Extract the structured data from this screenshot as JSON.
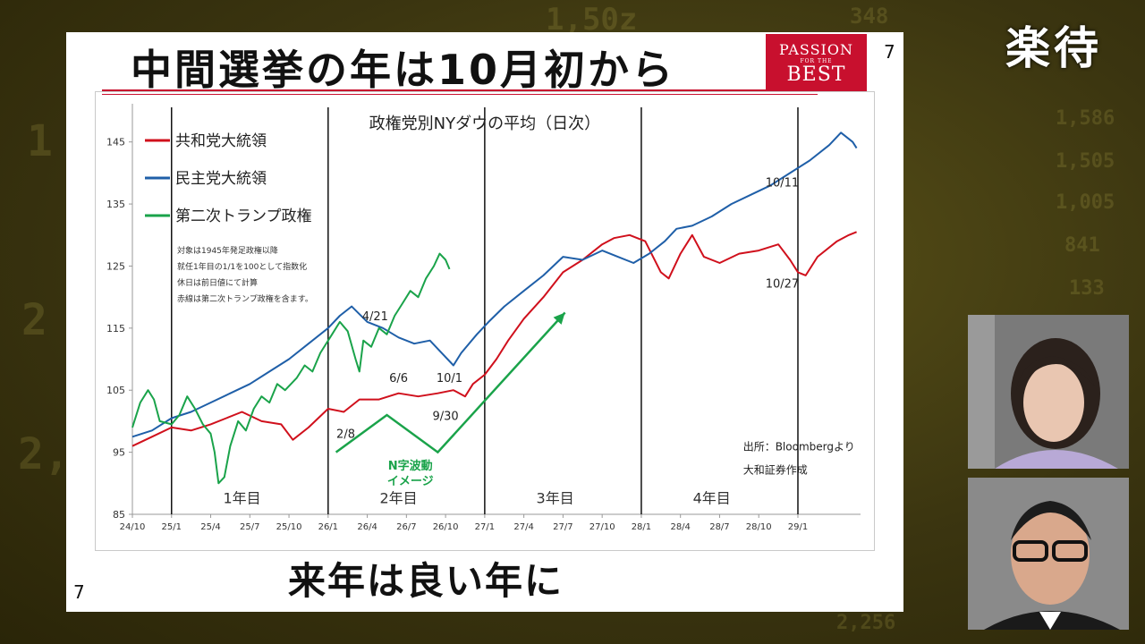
{
  "slide": {
    "title": "中間選挙の年は10月初から",
    "page_number": "7",
    "page_number_bottom": "7",
    "caption": "来年は良い年に",
    "logo": {
      "line1": "PASSION",
      "line2": "FOR THE",
      "line3": "BEST"
    }
  },
  "tag": "楽待",
  "background_digits": [
    "1,50z",
    "348",
    "1,586",
    "1,505",
    "1,005",
    "1",
    "2",
    "2,",
    "841",
    "133",
    "2,256"
  ],
  "notes": [
    "対象は1945年発足政権以降",
    "就任1年目の1/1を100として指数化",
    "休日は前日値にて計算",
    "赤線は第二次トランプ政権を含ます。"
  ],
  "source": [
    "出所：Bloombergより",
    "大和証券作成"
  ],
  "colors": {
    "republican": "#d0101c",
    "democrat": "#1f5fa8",
    "trump2": "#1aa34a",
    "logo": "#c8102e"
  },
  "chart_data": {
    "type": "line",
    "title": "政権党別NYダウの平均（日次）",
    "ylim": [
      85,
      150
    ],
    "yticks": [
      85,
      95,
      105,
      115,
      125,
      135,
      145
    ],
    "xticks": [
      "24/10",
      "25/1",
      "25/4",
      "25/7",
      "25/10",
      "26/1",
      "26/4",
      "26/7",
      "26/10",
      "27/1",
      "27/4",
      "27/7",
      "27/10",
      "28/1",
      "28/4",
      "28/7",
      "28/10",
      "29/1"
    ],
    "x_range": [
      0,
      18.6
    ],
    "term_boundaries": [
      1,
      5,
      9,
      13,
      17
    ],
    "term_labels": [
      {
        "label": "1年目",
        "x": 2.8
      },
      {
        "label": "2年目",
        "x": 6.8
      },
      {
        "label": "3年目",
        "x": 10.8
      },
      {
        "label": "4年目",
        "x": 14.8
      }
    ],
    "series": [
      {
        "name": "共和党大統領",
        "color": "#d0101c",
        "points": [
          [
            0,
            96
          ],
          [
            0.5,
            97.5
          ],
          [
            1,
            99
          ],
          [
            1.5,
            98.5
          ],
          [
            2,
            99.5
          ],
          [
            2.4,
            100.5
          ],
          [
            2.8,
            101.5
          ],
          [
            3.3,
            100
          ],
          [
            3.8,
            99.5
          ],
          [
            4.1,
            97
          ],
          [
            4.5,
            99
          ],
          [
            5,
            102
          ],
          [
            5.4,
            101.5
          ],
          [
            5.8,
            103.5
          ],
          [
            6.3,
            103.5
          ],
          [
            6.8,
            104.5
          ],
          [
            7.3,
            104
          ],
          [
            7.8,
            104.5
          ],
          [
            8.2,
            105
          ],
          [
            8.5,
            104
          ],
          [
            8.7,
            106
          ],
          [
            9,
            107.5
          ],
          [
            9.3,
            110
          ],
          [
            9.6,
            113
          ],
          [
            10,
            116.5
          ],
          [
            10.5,
            120
          ],
          [
            11,
            124
          ],
          [
            11.5,
            126
          ],
          [
            12,
            128.5
          ],
          [
            12.3,
            129.5
          ],
          [
            12.7,
            130
          ],
          [
            13.1,
            129
          ],
          [
            13.5,
            124
          ],
          [
            13.7,
            123
          ],
          [
            14,
            127
          ],
          [
            14.3,
            130
          ],
          [
            14.6,
            126.5
          ],
          [
            15,
            125.5
          ],
          [
            15.5,
            127
          ],
          [
            16,
            127.5
          ],
          [
            16.5,
            128.5
          ],
          [
            16.8,
            126
          ],
          [
            17,
            124
          ],
          [
            17.2,
            123.5
          ],
          [
            17.5,
            126.5
          ],
          [
            18,
            129
          ],
          [
            18.3,
            130
          ],
          [
            18.5,
            130.5
          ]
        ]
      },
      {
        "name": "民主党大統領",
        "color": "#1f5fa8",
        "points": [
          [
            0,
            97.5
          ],
          [
            0.5,
            98.5
          ],
          [
            1,
            100.5
          ],
          [
            1.5,
            101.5
          ],
          [
            2,
            103
          ],
          [
            2.5,
            104.5
          ],
          [
            3,
            106
          ],
          [
            3.5,
            108
          ],
          [
            4,
            110
          ],
          [
            4.5,
            112.5
          ],
          [
            5,
            115
          ],
          [
            5.3,
            117
          ],
          [
            5.6,
            118.5
          ],
          [
            6,
            116
          ],
          [
            6.4,
            115
          ],
          [
            6.8,
            113.5
          ],
          [
            7.2,
            112.5
          ],
          [
            7.6,
            113
          ],
          [
            7.9,
            111
          ],
          [
            8.2,
            109
          ],
          [
            8.4,
            111
          ],
          [
            8.8,
            114
          ],
          [
            9.1,
            116
          ],
          [
            9.5,
            118.5
          ],
          [
            10,
            121
          ],
          [
            10.5,
            123.5
          ],
          [
            11,
            126.5
          ],
          [
            11.5,
            126
          ],
          [
            12,
            127.5
          ],
          [
            12.4,
            126.5
          ],
          [
            12.8,
            125.5
          ],
          [
            13.2,
            127
          ],
          [
            13.6,
            129
          ],
          [
            13.9,
            131
          ],
          [
            14.3,
            131.5
          ],
          [
            14.8,
            133
          ],
          [
            15.3,
            135
          ],
          [
            15.8,
            136.5
          ],
          [
            16.3,
            138
          ],
          [
            16.8,
            140
          ],
          [
            17.3,
            142
          ],
          [
            17.8,
            144.5
          ],
          [
            18.1,
            146.5
          ],
          [
            18.4,
            145
          ],
          [
            18.5,
            144
          ]
        ]
      },
      {
        "name": "第二次トランプ政権",
        "color": "#1aa34a",
        "points": [
          [
            0,
            99
          ],
          [
            0.2,
            103
          ],
          [
            0.4,
            105
          ],
          [
            0.55,
            103.5
          ],
          [
            0.7,
            100
          ],
          [
            1,
            99.5
          ],
          [
            1.2,
            101
          ],
          [
            1.4,
            104
          ],
          [
            1.6,
            102
          ],
          [
            1.8,
            99.5
          ],
          [
            2,
            98
          ],
          [
            2.1,
            95
          ],
          [
            2.2,
            90
          ],
          [
            2.35,
            91
          ],
          [
            2.5,
            96
          ],
          [
            2.7,
            100
          ],
          [
            2.9,
            98.5
          ],
          [
            3.1,
            102
          ],
          [
            3.3,
            104
          ],
          [
            3.5,
            103
          ],
          [
            3.7,
            106
          ],
          [
            3.9,
            105
          ],
          [
            4.2,
            107
          ],
          [
            4.4,
            109
          ],
          [
            4.6,
            108
          ],
          [
            4.8,
            111
          ],
          [
            5.1,
            114
          ],
          [
            5.3,
            116
          ],
          [
            5.5,
            114.5
          ],
          [
            5.7,
            110
          ],
          [
            5.8,
            108
          ],
          [
            5.9,
            113
          ],
          [
            6.1,
            112
          ],
          [
            6.3,
            115
          ],
          [
            6.5,
            114
          ],
          [
            6.7,
            117
          ],
          [
            6.9,
            119
          ],
          [
            7.1,
            121
          ],
          [
            7.3,
            120
          ],
          [
            7.5,
            123
          ],
          [
            7.7,
            125
          ],
          [
            7.85,
            127
          ],
          [
            8,
            126
          ],
          [
            8.1,
            124.5
          ]
        ]
      }
    ],
    "annotations": [
      {
        "text": "4/21",
        "x": 6.2,
        "y": 116.3
      },
      {
        "text": "6/6",
        "x": 6.8,
        "y": 106.3
      },
      {
        "text": "10/1",
        "x": 8.1,
        "y": 106.3
      },
      {
        "text": "9/30",
        "x": 8.0,
        "y": 100.2
      },
      {
        "text": "2/8",
        "x": 5.45,
        "y": 97.3
      },
      {
        "text": "10/11",
        "x": 16.6,
        "y": 137.8
      },
      {
        "text": "10/27",
        "x": 16.6,
        "y": 121.5
      }
    ],
    "n_wave": {
      "label_lines": [
        "N字波動",
        "イメージ"
      ],
      "points": [
        [
          5.2,
          95
        ],
        [
          6.5,
          101
        ],
        [
          7.8,
          95
        ],
        [
          11.05,
          117.5
        ]
      ]
    }
  }
}
